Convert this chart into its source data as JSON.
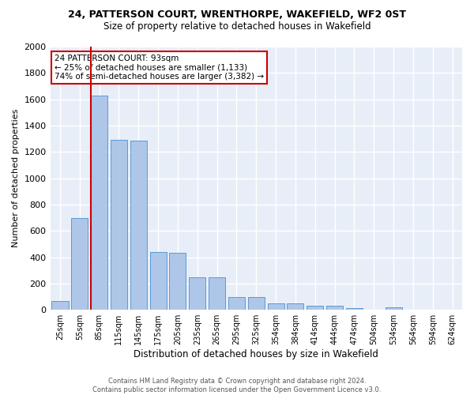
{
  "title": "24, PATTERSON COURT, WRENTHORPE, WAKEFIELD, WF2 0ST",
  "subtitle": "Size of property relative to detached houses in Wakefield",
  "xlabel": "Distribution of detached houses by size in Wakefield",
  "ylabel": "Number of detached properties",
  "bar_color": "#aec6e8",
  "bar_edge_color": "#5b9bd5",
  "background_color": "#e8eef7",
  "grid_color": "#ffffff",
  "categories": [
    "25sqm",
    "55sqm",
    "85sqm",
    "115sqm",
    "145sqm",
    "175sqm",
    "205sqm",
    "235sqm",
    "265sqm",
    "295sqm",
    "325sqm",
    "354sqm",
    "384sqm",
    "414sqm",
    "444sqm",
    "474sqm",
    "504sqm",
    "534sqm",
    "564sqm",
    "594sqm",
    "624sqm"
  ],
  "values": [
    70,
    700,
    1630,
    1290,
    1285,
    440,
    435,
    250,
    250,
    100,
    95,
    50,
    50,
    30,
    30,
    15,
    0,
    20,
    0,
    0,
    0
  ],
  "property_bin_index": 2,
  "annotation_text": "24 PATTERSON COURT: 93sqm\n← 25% of detached houses are smaller (1,133)\n74% of semi-detached houses are larger (3,382) →",
  "annotation_box_color": "#ffffff",
  "annotation_box_edge": "#cc0000",
  "red_line_color": "#cc0000",
  "footer_text": "Contains HM Land Registry data © Crown copyright and database right 2024.\nContains public sector information licensed under the Open Government Licence v3.0.",
  "ylim": [
    0,
    2000
  ],
  "yticks": [
    0,
    200,
    400,
    600,
    800,
    1000,
    1200,
    1400,
    1600,
    1800,
    2000
  ]
}
